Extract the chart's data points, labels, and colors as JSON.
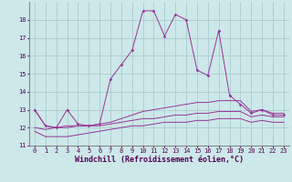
{
  "xlabel": "Windchill (Refroidissement éolien,°C)",
  "bg_color": "#cce8e8",
  "grid_color": "#aacccc",
  "line_color": "#993399",
  "x": [
    0,
    1,
    2,
    3,
    4,
    5,
    6,
    7,
    8,
    9,
    10,
    11,
    12,
    13,
    14,
    15,
    16,
    17,
    18,
    19,
    20,
    21,
    22,
    23
  ],
  "y_main": [
    13.0,
    12.1,
    12.0,
    13.0,
    12.2,
    12.1,
    12.2,
    14.7,
    15.5,
    16.3,
    18.5,
    18.5,
    17.1,
    18.3,
    18.0,
    15.2,
    14.9,
    17.4,
    13.8,
    13.3,
    12.8,
    13.0,
    12.7,
    12.7
  ],
  "y_upper": [
    13.0,
    12.1,
    12.0,
    12.1,
    12.1,
    12.1,
    12.2,
    12.3,
    12.5,
    12.7,
    12.9,
    13.0,
    13.1,
    13.2,
    13.3,
    13.4,
    13.4,
    13.5,
    13.5,
    13.5,
    12.9,
    13.0,
    12.8,
    12.8
  ],
  "y_middle": [
    12.0,
    11.9,
    12.0,
    12.0,
    12.1,
    12.1,
    12.1,
    12.2,
    12.3,
    12.4,
    12.5,
    12.5,
    12.6,
    12.7,
    12.7,
    12.8,
    12.8,
    12.9,
    12.9,
    12.9,
    12.6,
    12.7,
    12.6,
    12.6
  ],
  "y_lower": [
    11.8,
    11.5,
    11.5,
    11.5,
    11.6,
    11.7,
    11.8,
    11.9,
    12.0,
    12.1,
    12.1,
    12.2,
    12.3,
    12.3,
    12.3,
    12.4,
    12.4,
    12.5,
    12.5,
    12.5,
    12.3,
    12.4,
    12.3,
    12.3
  ],
  "xlim": [
    -0.5,
    23.5
  ],
  "ylim": [
    11,
    19
  ],
  "yticks": [
    11,
    12,
    13,
    14,
    15,
    16,
    17,
    18
  ],
  "xticks": [
    0,
    1,
    2,
    3,
    4,
    5,
    6,
    7,
    8,
    9,
    10,
    11,
    12,
    13,
    14,
    15,
    16,
    17,
    18,
    19,
    20,
    21,
    22,
    23
  ],
  "tick_fontsize": 5.0,
  "xlabel_fontsize": 6.0,
  "marker": "D",
  "markersize": 1.8,
  "linewidth": 0.7
}
